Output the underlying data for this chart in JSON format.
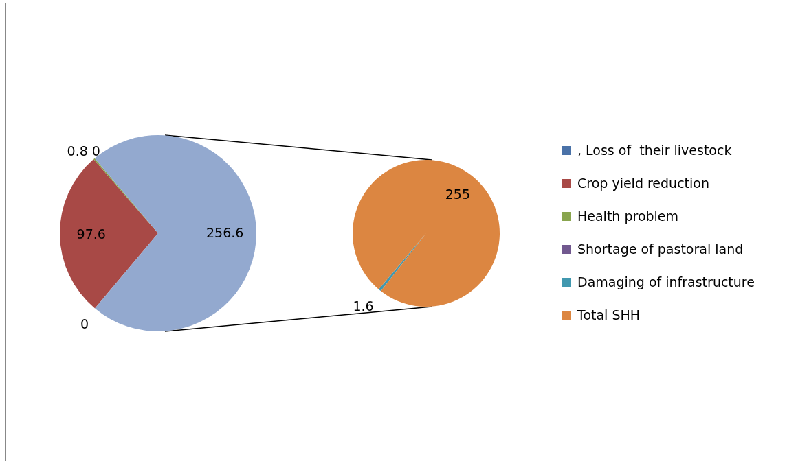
{
  "chart_data": [
    {
      "type": "pie",
      "categories": [
        ", Loss of  their livestock",
        "Crop yield reduction",
        "Health problem",
        "Shortage of pastoral land",
        null
      ],
      "values": [
        0,
        97.6,
        0.8,
        0,
        256.6
      ],
      "value_labels": [
        "0",
        "97.6",
        "0.8",
        "0",
        "256.6"
      ],
      "colors": [
        "#4a72a8",
        "#a84946",
        "#89a54e",
        "#71588f",
        "#93a9cf"
      ],
      "data_labels": true,
      "legend": "right"
    },
    {
      "type": "pie",
      "categories": [
        "Damaging of infrastructure",
        "Total SHH"
      ],
      "values": [
        1.6,
        255
      ],
      "colors": [
        "#4198af",
        "#dc8641"
      ],
      "data_labels": true,
      "legend": "right"
    }
  ]
}
